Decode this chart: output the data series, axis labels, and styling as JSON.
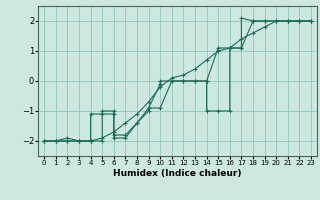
{
  "xlabel": "Humidex (Indice chaleur)",
  "xlim": [
    -0.5,
    23.5
  ],
  "ylim": [
    -2.5,
    2.5
  ],
  "xticks": [
    0,
    1,
    2,
    3,
    4,
    5,
    6,
    7,
    8,
    9,
    10,
    11,
    12,
    13,
    14,
    15,
    16,
    17,
    18,
    19,
    20,
    21,
    22,
    23
  ],
  "yticks": [
    -2,
    -1,
    0,
    1,
    2
  ],
  "bg_color": "#cce8e0",
  "grid_color": "#99ccc0",
  "line_color": "#1a6b5a",
  "line1_x": [
    0,
    1,
    2,
    3,
    4,
    5,
    6,
    7,
    8,
    9,
    10,
    11,
    12,
    13,
    14,
    15,
    16,
    17,
    18,
    19,
    20,
    21,
    22,
    23
  ],
  "line1_y": [
    -2.0,
    -2.0,
    -1.9,
    -2.0,
    -2.0,
    -1.9,
    -1.7,
    -1.4,
    -1.1,
    -0.7,
    -0.2,
    0.1,
    0.2,
    0.4,
    0.7,
    1.0,
    1.1,
    1.4,
    1.6,
    1.8,
    2.0,
    2.0,
    2.0,
    2.0
  ],
  "line2_x": [
    0,
    1,
    2,
    3,
    4,
    5,
    5,
    6,
    6,
    7,
    8,
    9,
    10,
    10,
    11,
    12,
    13,
    14,
    15,
    16,
    17,
    17,
    18,
    19,
    20,
    21,
    22,
    23
  ],
  "line2_y": [
    -2.0,
    -2.0,
    -2.0,
    -2.0,
    -2.0,
    -2.0,
    -1.0,
    -1.0,
    -1.9,
    -1.9,
    -1.4,
    -0.9,
    -0.1,
    -0.0,
    0.0,
    0.0,
    0.0,
    0.0,
    1.1,
    1.1,
    1.1,
    2.1,
    2.0,
    2.0,
    2.0,
    2.0,
    2.0,
    2.0
  ],
  "line3_x": [
    0,
    1,
    2,
    3,
    4,
    4,
    5,
    6,
    6,
    7,
    8,
    9,
    9,
    10,
    11,
    12,
    13,
    14,
    14,
    15,
    16,
    16,
    17,
    18,
    19,
    20,
    21,
    22,
    23
  ],
  "line3_y": [
    -2.0,
    -2.0,
    -2.0,
    -2.0,
    -2.0,
    -1.1,
    -1.1,
    -1.1,
    -1.8,
    -1.8,
    -1.4,
    -1.0,
    -0.9,
    -0.9,
    0.0,
    0.0,
    0.0,
    0.0,
    -1.0,
    -1.0,
    -1.0,
    1.1,
    1.1,
    2.0,
    2.0,
    2.0,
    2.0,
    2.0,
    2.0
  ]
}
